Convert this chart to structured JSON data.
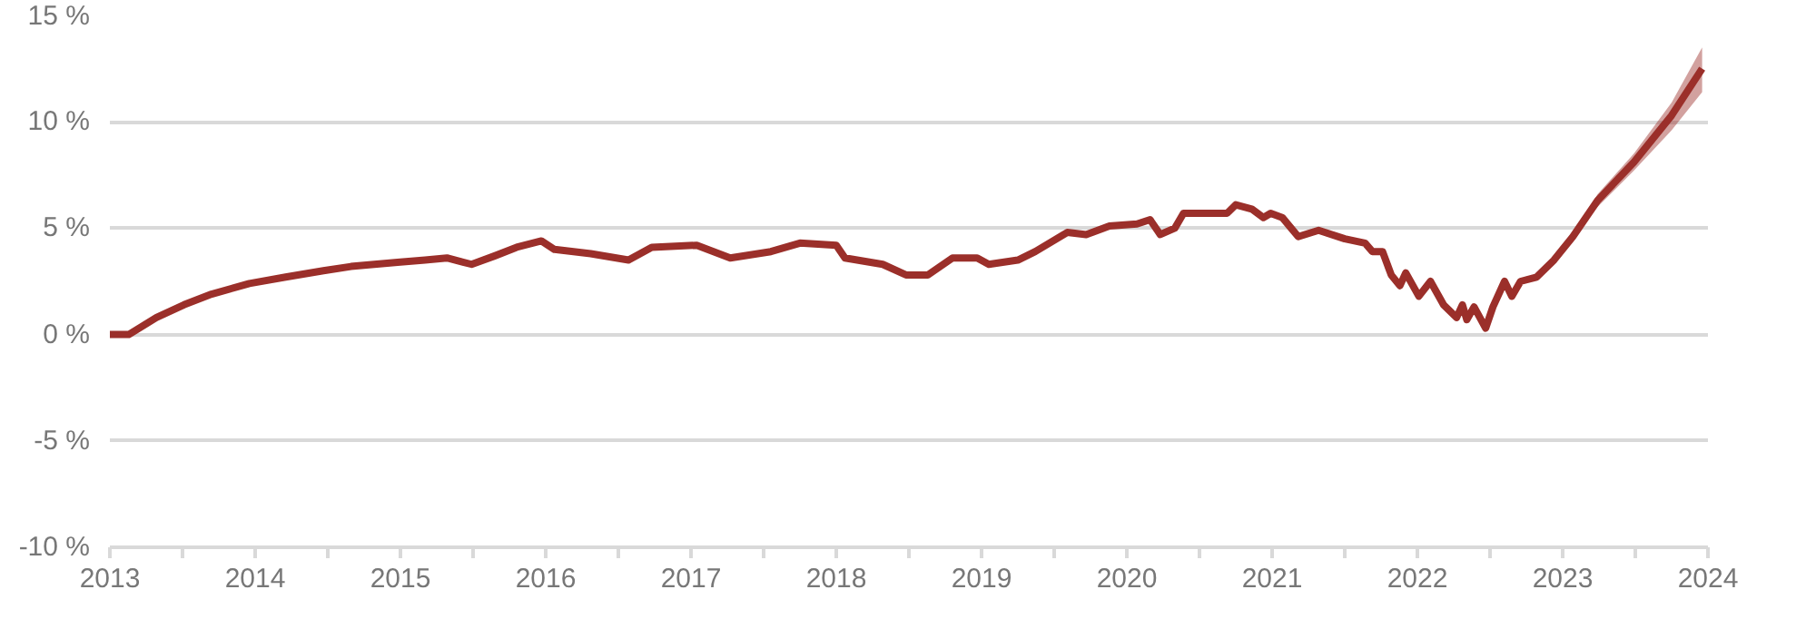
{
  "chart_data": {
    "type": "line",
    "x": [
      2013.0,
      2013.13,
      2013.32,
      2013.51,
      2013.7,
      2013.96,
      2014.21,
      2014.47,
      2014.66,
      2014.98,
      2015.17,
      2015.32,
      2015.49,
      2015.65,
      2015.8,
      2015.97,
      2016.06,
      2016.31,
      2016.57,
      2016.73,
      2017.04,
      2017.27,
      2017.55,
      2017.75,
      2018.0,
      2018.06,
      2018.32,
      2018.48,
      2018.63,
      2018.8,
      2018.97,
      2019.05,
      2019.25,
      2019.37,
      2019.59,
      2019.72,
      2019.88,
      2020.07,
      2020.16,
      2020.23,
      2020.33,
      2020.39,
      2020.52,
      2020.69,
      2020.75,
      2020.86,
      2020.94,
      2020.99,
      2021.07,
      2021.18,
      2021.32,
      2021.5,
      2021.64,
      2021.69,
      2021.76,
      2021.82,
      2021.88,
      2021.92,
      2022.01,
      2022.09,
      2022.18,
      2022.27,
      2022.31,
      2022.34,
      2022.39,
      2022.47,
      2022.52,
      2022.6,
      2022.65,
      2022.71,
      2022.82,
      2022.94,
      2023.07,
      2023.24,
      2023.49,
      2023.75,
      2023.96
    ],
    "series": [
      {
        "color": "#9b2f2a",
        "values": [
          0,
          0,
          0.8,
          1.4,
          1.9,
          2.4,
          2.7,
          3.0,
          3.2,
          3.4,
          3.5,
          3.6,
          3.3,
          3.7,
          4.1,
          4.4,
          4.0,
          3.8,
          3.5,
          4.1,
          4.2,
          3.6,
          3.9,
          4.3,
          4.2,
          3.6,
          3.3,
          2.8,
          2.8,
          3.6,
          3.6,
          3.3,
          3.5,
          3.9,
          4.8,
          4.7,
          5.1,
          5.2,
          5.4,
          4.7,
          5.0,
          5.7,
          5.7,
          5.7,
          6.1,
          5.9,
          5.5,
          5.7,
          5.5,
          4.6,
          4.9,
          4.5,
          4.3,
          3.9,
          3.9,
          2.8,
          2.3,
          2.9,
          1.8,
          2.5,
          1.4,
          0.8,
          1.4,
          0.7,
          1.3,
          0.3,
          1.3,
          2.5,
          1.8,
          2.5,
          2.7,
          3.5,
          4.6,
          6.3,
          8.1,
          10.3,
          12.5
        ],
        "lower": [
          null,
          null,
          null,
          null,
          null,
          null,
          null,
          null,
          null,
          null,
          null,
          null,
          null,
          null,
          null,
          null,
          null,
          null,
          null,
          null,
          null,
          null,
          null,
          null,
          null,
          null,
          null,
          null,
          null,
          null,
          null,
          null,
          null,
          null,
          null,
          null,
          null,
          null,
          null,
          null,
          null,
          null,
          null,
          null,
          null,
          null,
          null,
          null,
          null,
          null,
          null,
          null,
          null,
          null,
          null,
          null,
          null,
          null,
          null,
          null,
          null,
          null,
          null,
          null,
          null,
          null,
          null,
          null,
          null,
          null,
          null,
          null,
          4.6,
          6.0,
          7.7,
          9.6,
          11.4
        ],
        "upper": [
          null,
          null,
          null,
          null,
          null,
          null,
          null,
          null,
          null,
          null,
          null,
          null,
          null,
          null,
          null,
          null,
          null,
          null,
          null,
          null,
          null,
          null,
          null,
          null,
          null,
          null,
          null,
          null,
          null,
          null,
          null,
          null,
          null,
          null,
          null,
          null,
          null,
          null,
          null,
          null,
          null,
          null,
          null,
          null,
          null,
          null,
          null,
          null,
          null,
          null,
          null,
          null,
          null,
          null,
          null,
          null,
          null,
          null,
          null,
          null,
          null,
          null,
          null,
          null,
          null,
          null,
          null,
          null,
          null,
          null,
          null,
          null,
          4.6,
          6.6,
          8.5,
          10.9,
          13.5
        ]
      }
    ],
    "xlim": [
      2013,
      2024
    ],
    "xticks": [
      2013,
      {
        "value": 2013.5,
        "label": null
      },
      2014,
      {
        "value": 2014.5,
        "label": null
      },
      2015,
      {
        "value": 2015.5,
        "label": null
      },
      2016,
      {
        "value": 2016.5,
        "label": null
      },
      2017,
      {
        "value": 2017.5,
        "label": null
      },
      2018,
      {
        "value": 2018.5,
        "label": null
      },
      2019,
      {
        "value": 2019.5,
        "label": null
      },
      2020,
      {
        "value": 2020.5,
        "label": null
      },
      2021,
      {
        "value": 2021.5,
        "label": null
      },
      2022,
      {
        "value": 2022.5,
        "label": null
      },
      2023,
      {
        "value": 2023.5,
        "label": null
      },
      2024
    ],
    "ylim": [
      -10,
      15
    ],
    "yticks": [
      {
        "value": -10,
        "label": "-10 %"
      },
      {
        "value": -5,
        "label": "-5 %"
      },
      {
        "value": 0,
        "label": "0 %"
      },
      {
        "value": 5,
        "label": "5 %"
      },
      {
        "value": 10,
        "label": "10 %"
      },
      {
        "value": 15,
        "label": "15 %"
      }
    ],
    "grid": "y",
    "marker": "none",
    "line_style": "solid"
  }
}
